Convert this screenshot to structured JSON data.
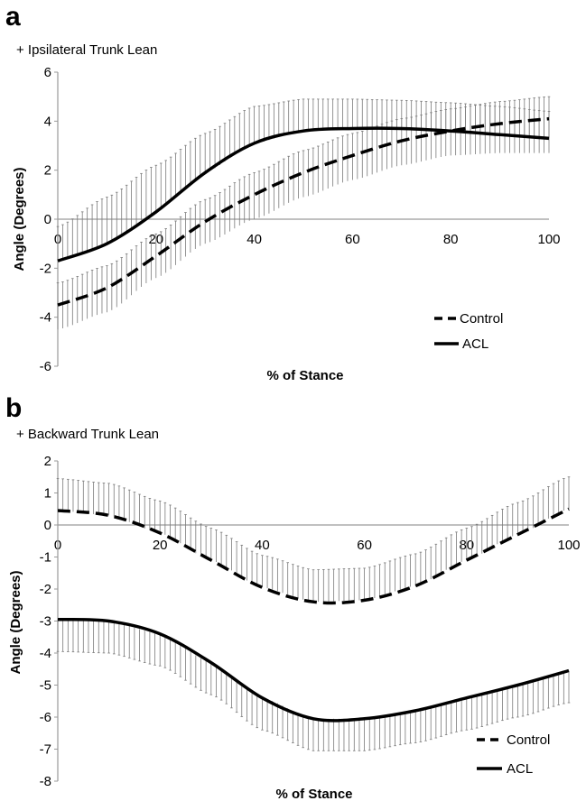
{
  "chart_data": [
    {
      "type": "line",
      "panel_label": "a",
      "subtitle": "+ Ipsilateral Trunk Lean",
      "xlabel": "% of Stance",
      "ylabel": "Angle (Degrees)",
      "xlim": [
        0,
        100
      ],
      "ylim": [
        -6,
        6
      ],
      "x_ticks": [
        "0",
        "20",
        "40",
        "60",
        "80",
        "100"
      ],
      "y_ticks": [
        "6",
        "4",
        "2",
        "0",
        "-2",
        "-4",
        "-6"
      ],
      "x": [
        0,
        10,
        20,
        30,
        40,
        50,
        60,
        70,
        80,
        90,
        100
      ],
      "series": [
        {
          "name": "Control",
          "style": "dashed",
          "values": [
            -3.5,
            -2.8,
            -1.5,
            -0.1,
            1.0,
            1.9,
            2.6,
            3.2,
            3.6,
            3.9,
            4.1
          ],
          "error_upper": [
            -2.6,
            -1.9,
            -0.6,
            0.8,
            1.9,
            2.8,
            3.5,
            4.1,
            4.5,
            4.8,
            5.0
          ],
          "error_lower": [
            -4.5,
            -3.8,
            -2.4,
            -1.0,
            0.0,
            0.9,
            1.6,
            2.2,
            2.6,
            2.7,
            2.7
          ]
        },
        {
          "name": "ACL",
          "style": "solid",
          "values": [
            -1.7,
            -1.0,
            0.3,
            1.9,
            3.1,
            3.6,
            3.7,
            3.7,
            3.6,
            3.45,
            3.3
          ],
          "error_upper": [
            -0.3,
            0.9,
            2.2,
            3.5,
            4.6,
            4.9,
            4.9,
            4.85,
            4.75,
            4.6,
            4.4
          ],
          "error_lower": [
            -1.7,
            -1.0,
            0.3,
            1.9,
            3.1,
            3.6,
            3.7,
            3.7,
            3.6,
            3.45,
            3.3
          ]
        }
      ],
      "legend_position": "bottom-right",
      "grid": false
    },
    {
      "type": "line",
      "panel_label": "b",
      "subtitle": "+ Backward Trunk Lean",
      "xlabel": "% of Stance",
      "ylabel": "Angle (Degrees)",
      "xlim": [
        0,
        100
      ],
      "ylim": [
        -8,
        2
      ],
      "x_ticks": [
        "0",
        "20",
        "40",
        "60",
        "80",
        "100"
      ],
      "y_ticks": [
        "2",
        "1",
        "0",
        "-1",
        "-2",
        "-3",
        "-4",
        "-5",
        "-6",
        "-7",
        "-8"
      ],
      "x": [
        0,
        10,
        20,
        30,
        40,
        50,
        60,
        70,
        80,
        90,
        100
      ],
      "series": [
        {
          "name": "Control",
          "style": "dashed",
          "values": [
            0.45,
            0.3,
            -0.25,
            -1.1,
            -1.95,
            -2.4,
            -2.35,
            -1.9,
            -1.1,
            -0.3,
            0.5
          ],
          "error_upper": [
            1.45,
            1.3,
            0.75,
            -0.1,
            -0.95,
            -1.4,
            -1.35,
            -0.9,
            -0.1,
            0.7,
            1.5
          ],
          "error_lower": [
            0.45,
            0.3,
            -0.25,
            -1.1,
            -1.95,
            -2.4,
            -2.35,
            -1.9,
            -1.1,
            -0.3,
            0.5
          ]
        },
        {
          "name": "ACL",
          "style": "solid",
          "values": [
            -2.95,
            -3.0,
            -3.4,
            -4.3,
            -5.4,
            -6.05,
            -6.05,
            -5.8,
            -5.4,
            -5.0,
            -4.55
          ],
          "error_upper": [
            -2.95,
            -3.0,
            -3.4,
            -4.3,
            -5.4,
            -6.05,
            -6.05,
            -5.8,
            -5.4,
            -5.0,
            -4.55
          ],
          "error_lower": [
            -3.95,
            -4.0,
            -4.4,
            -5.3,
            -6.4,
            -7.05,
            -7.05,
            -6.8,
            -6.4,
            -6.0,
            -5.55
          ]
        }
      ],
      "legend_position": "bottom-right",
      "grid": false
    }
  ]
}
